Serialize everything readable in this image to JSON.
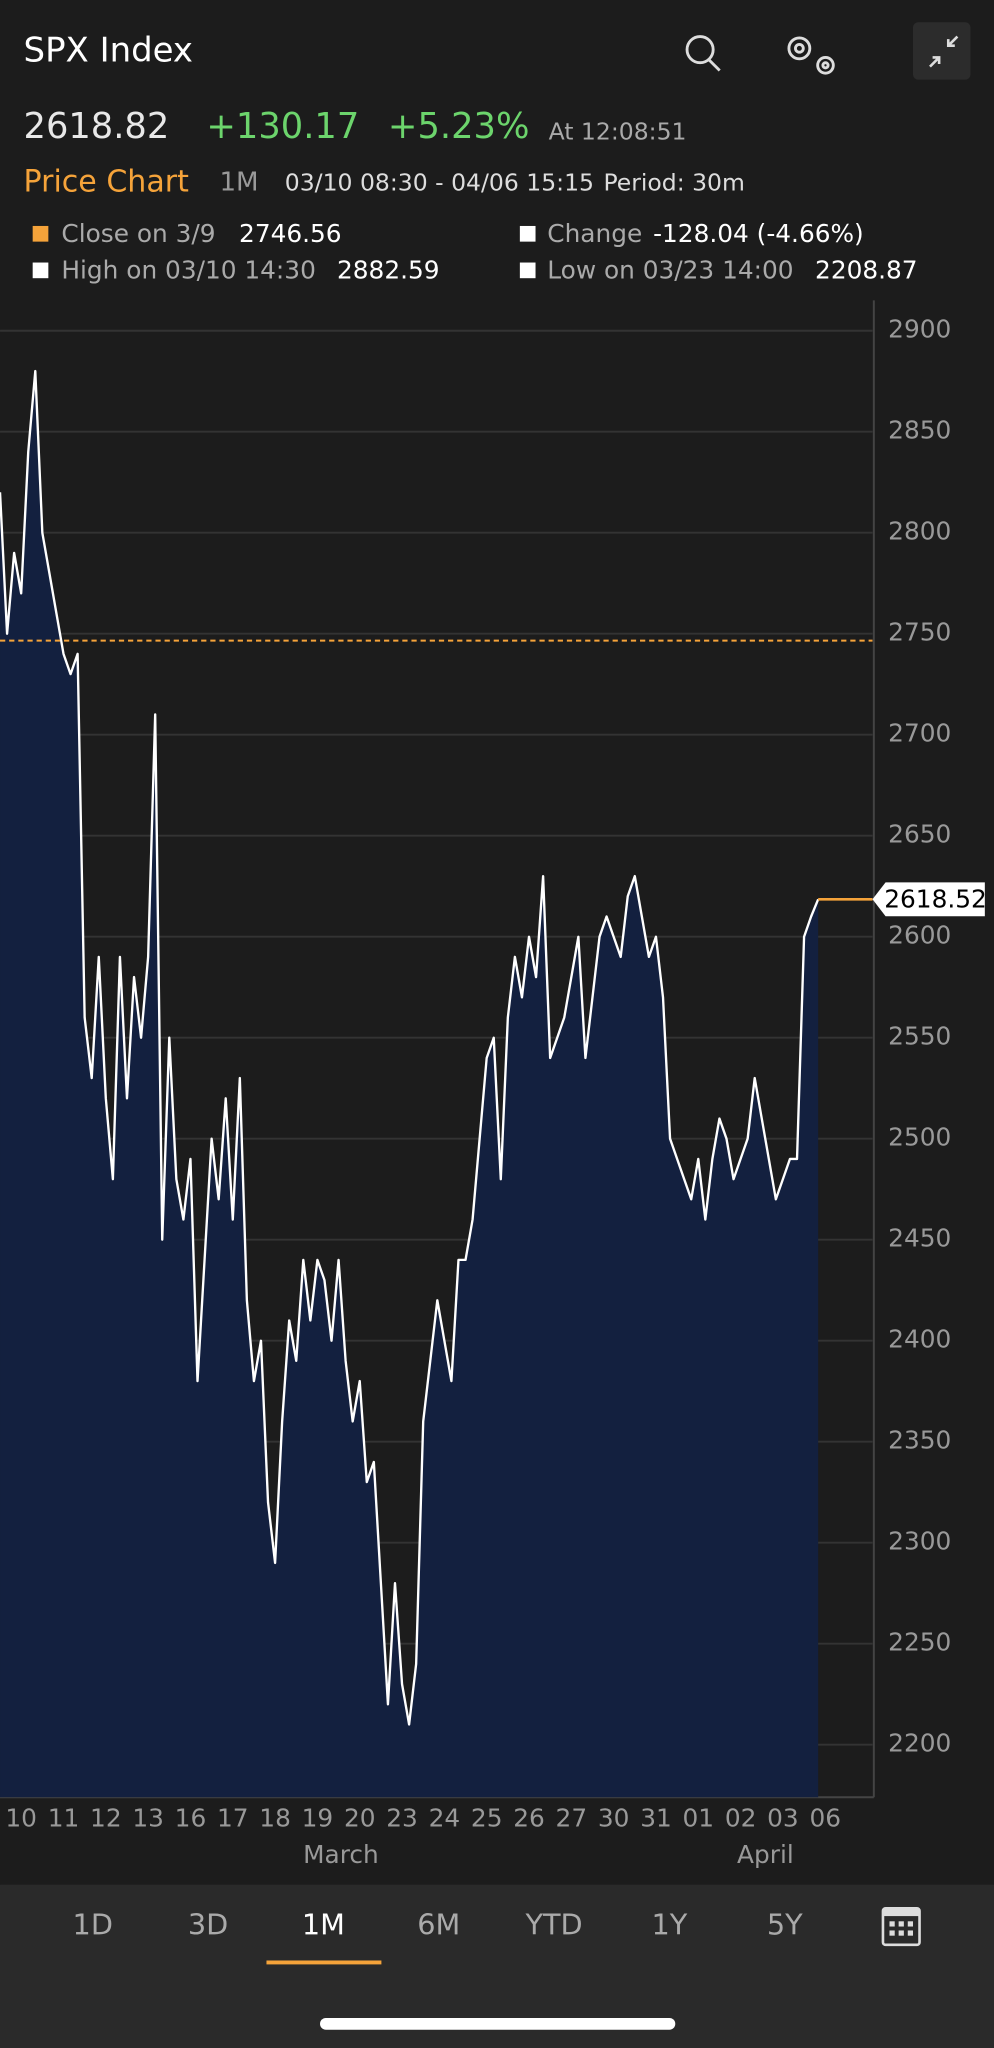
{
  "header": {
    "title": "SPX Index",
    "price": "2618.82",
    "change": "+130.17",
    "change_pct": "+5.23%",
    "time": "At 12:08:51",
    "chart_label": "Price Chart",
    "range": "1M",
    "dates": "03/10 08:30 - 04/06 15:15",
    "period": "Period: 30m"
  },
  "legend": {
    "close_label": "Close on 3/9",
    "change_label": "Change",
    "change_value": "-128.04 (-4.66%)",
    "high_label": "High on 03/10 14:30",
    "high_value": "2882.59",
    "low_label": "Low on 03/23 14:00",
    "low_value": "2208.87"
  },
  "chart_data": {
    "type": "area",
    "color": "#ffffff",
    "fill": "#13203f",
    "reference_line": 2746.56,
    "reference_color": "#f5a33a",
    "values": [
      2820,
      2750,
      2790,
      2770,
      2840,
      2880,
      2800,
      2780,
      2760,
      2740,
      2730,
      2740,
      2560,
      2530,
      2590,
      2520,
      2480,
      2590,
      2520,
      2580,
      2550,
      2590,
      2710,
      2450,
      2550,
      2480,
      2460,
      2490,
      2380,
      2440,
      2500,
      2470,
      2520,
      2460,
      2530,
      2420,
      2380,
      2400,
      2320,
      2290,
      2360,
      2410,
      2390,
      2440,
      2410,
      2440,
      2430,
      2400,
      2440,
      2390,
      2360,
      2380,
      2330,
      2340,
      2280,
      2220,
      2280,
      2230,
      2210,
      2240,
      2360,
      2390,
      2420,
      2400,
      2380,
      2440,
      2440,
      2460,
      2500,
      2540,
      2550,
      2480,
      2560,
      2590,
      2570,
      2600,
      2580,
      2630,
      2540,
      2550,
      2560,
      2580,
      2600,
      2540,
      2570,
      2600,
      2610,
      2600,
      2590,
      2620,
      2630,
      2610,
      2590,
      2600,
      2570,
      2500,
      2490,
      2480,
      2470,
      2490,
      2460,
      2490,
      2510,
      2500,
      2480,
      2490,
      2500,
      2530,
      2510,
      2490,
      2470,
      2480,
      2490,
      2490,
      2600,
      2610,
      2618.52
    ],
    "ylim": [
      2174,
      2915
    ],
    "yticks": [
      2200,
      2250,
      2300,
      2350,
      2400,
      2450,
      2500,
      2550,
      2600,
      2650,
      2700,
      2750,
      2800,
      2850,
      2900
    ],
    "xlim": [
      0,
      123.7
    ],
    "xticks": [
      {
        "value": 3,
        "label": "10"
      },
      {
        "value": 9,
        "label": "11"
      },
      {
        "value": 15,
        "label": "12"
      },
      {
        "value": 21,
        "label": "13"
      },
      {
        "value": 27,
        "label": "16"
      },
      {
        "value": 33,
        "label": "17"
      },
      {
        "value": 39,
        "label": "18"
      },
      {
        "value": 45,
        "label": "19"
      },
      {
        "value": 51,
        "label": "20"
      },
      {
        "value": 57,
        "label": "23"
      },
      {
        "value": 63,
        "label": "24"
      },
      {
        "value": 69,
        "label": "25"
      },
      {
        "value": 75,
        "label": "26"
      },
      {
        "value": 81,
        "label": "27"
      },
      {
        "value": 87,
        "label": "30"
      },
      {
        "value": 93,
        "label": "31"
      },
      {
        "value": 99,
        "label": "01"
      },
      {
        "value": 105,
        "label": "02"
      },
      {
        "value": 111,
        "label": "03"
      },
      {
        "value": 117,
        "label": "06"
      }
    ],
    "months": [
      "March",
      "April"
    ],
    "grid": true
  },
  "tabs": [
    "1D",
    "3D",
    "1M",
    "6M",
    "YTD",
    "1Y",
    "5Y"
  ]
}
